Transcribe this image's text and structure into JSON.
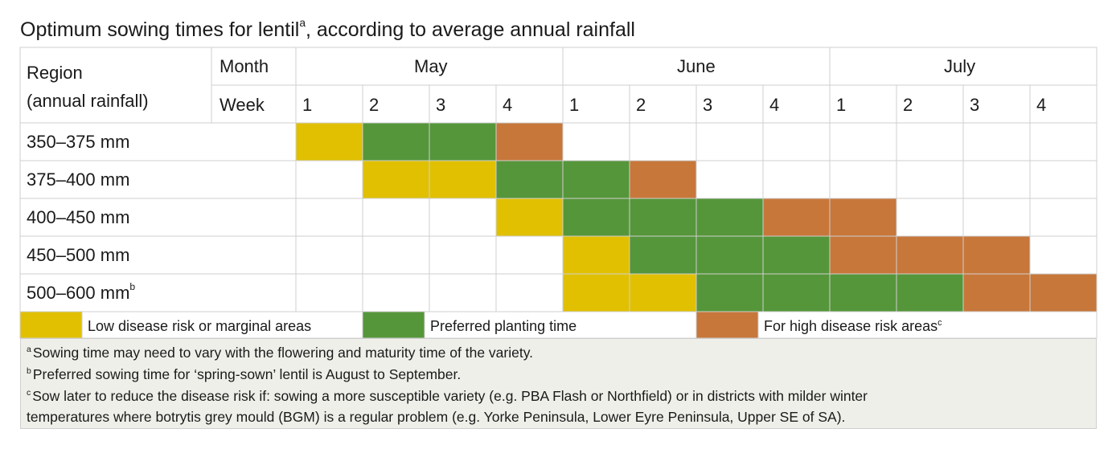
{
  "title": {
    "text": "Optimum sowing times for lentil",
    "sup": "a",
    "rest": ", according to average annual rainfall"
  },
  "header": {
    "region_line1": "Region",
    "region_line2": "(annual rainfall)",
    "month_label": "Month",
    "week_label": "Week",
    "months": [
      "May",
      "June",
      "July"
    ],
    "weeks": [
      "1",
      "2",
      "3",
      "4",
      "1",
      "2",
      "3",
      "4",
      "1",
      "2",
      "3",
      "4"
    ]
  },
  "colors": {
    "yellow": "#e0c000",
    "green": "#55963a",
    "orange": "#c7773a",
    "empty": "#ffffff"
  },
  "rows": [
    {
      "label": "350–375 mm",
      "sup": "",
      "cells": [
        "Y",
        "G",
        "G",
        "O",
        "",
        "",
        "",
        "",
        "",
        "",
        "",
        ""
      ]
    },
    {
      "label": "375–400 mm",
      "sup": "",
      "cells": [
        "",
        "Y",
        "Y",
        "G",
        "G",
        "O",
        "",
        "",
        "",
        "",
        "",
        ""
      ]
    },
    {
      "label": "400–450 mm",
      "sup": "",
      "cells": [
        "",
        "",
        "",
        "Y",
        "G",
        "G",
        "G",
        "O",
        "O",
        "",
        "",
        ""
      ]
    },
    {
      "label": "450–500 mm",
      "sup": "",
      "cells": [
        "",
        "",
        "",
        "",
        "Y",
        "G",
        "G",
        "G",
        "O",
        "O",
        "O",
        ""
      ]
    },
    {
      "label": "500–600 mm",
      "sup": "b",
      "cells": [
        "",
        "",
        "",
        "",
        "Y",
        "Y",
        "G",
        "G",
        "G",
        "G",
        "O",
        "O"
      ]
    }
  ],
  "legend": [
    {
      "key": "Y",
      "text": "Low disease risk or marginal areas",
      "sup": ""
    },
    {
      "key": "G",
      "text": "Preferred planting time",
      "sup": ""
    },
    {
      "key": "O",
      "text": "For high disease risk areas",
      "sup": "c"
    }
  ],
  "notes": [
    {
      "mark": "a",
      "text": "Sowing time may need to vary with the flowering and maturity time of the variety."
    },
    {
      "mark": "b",
      "text": "Preferred sowing time for ‘spring-sown’ lentil is August to September."
    },
    {
      "mark": "c",
      "text": "Sow later to reduce the disease risk if: sowing a more susceptible variety (e.g. PBA Flash or Northfield) or in districts with milder winter"
    },
    {
      "mark": "",
      "text": "temperatures where botrytis grey mould (BGM) is a regular problem (e.g. Yorke Peninsula, Lower Eyre Peninsula, Upper SE of SA)."
    }
  ]
}
